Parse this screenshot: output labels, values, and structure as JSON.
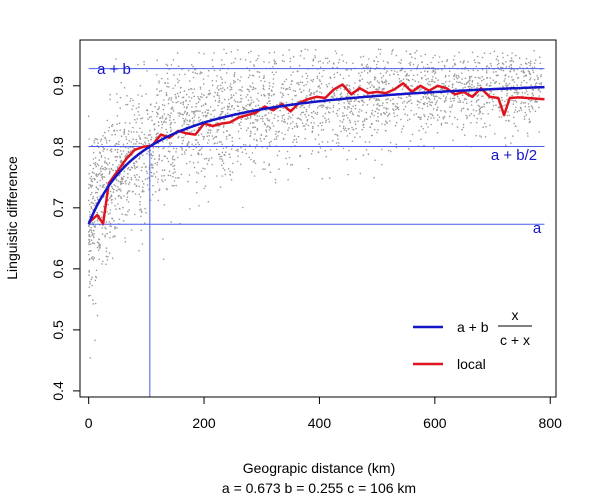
{
  "chart_data": {
    "type": "scatter",
    "xlabel": "Geograpic distance (km)",
    "ylabel": "Linguistic difference",
    "subtitle": "a = 0.673   b = 0.255   c = 106 km",
    "xlim": [
      -15,
      810
    ],
    "ylim": [
      0.39,
      0.975
    ],
    "x_ticks": [
      "0",
      "200",
      "400",
      "600",
      "800"
    ],
    "y_ticks": [
      "0.4",
      "0.5",
      "0.6",
      "0.7",
      "0.8",
      "0.9"
    ],
    "params": {
      "a": 0.673,
      "b": 0.255,
      "c": 106
    },
    "reference_lines": [
      {
        "label": "a",
        "y": 0.673
      },
      {
        "label": "a + b/2",
        "y": 0.8005
      },
      {
        "label": "a + b",
        "y": 0.928
      }
    ],
    "vertical_line_x": 106,
    "legend": {
      "position": "bottom-right",
      "fit_prefix": "a + b",
      "fit_numerator": "x",
      "fit_denominator": "c + x",
      "local_label": "local"
    },
    "series": [
      {
        "name": "local",
        "color": "#e0141e",
        "x": [
          0,
          15,
          25,
          35,
          50,
          65,
          80,
          95,
          110,
          125,
          140,
          155,
          170,
          185,
          200,
          215,
          230,
          245,
          260,
          275,
          290,
          305,
          320,
          335,
          350,
          365,
          380,
          395,
          410,
          425,
          440,
          455,
          470,
          485,
          500,
          515,
          530,
          545,
          560,
          575,
          590,
          605,
          620,
          635,
          650,
          665,
          680,
          695,
          710,
          720,
          730,
          745,
          760,
          775,
          790
        ],
        "y": [
          0.676,
          0.688,
          0.674,
          0.74,
          0.76,
          0.78,
          0.795,
          0.8,
          0.802,
          0.82,
          0.815,
          0.826,
          0.822,
          0.82,
          0.838,
          0.834,
          0.838,
          0.84,
          0.848,
          0.852,
          0.856,
          0.866,
          0.86,
          0.87,
          0.858,
          0.872,
          0.878,
          0.882,
          0.88,
          0.894,
          0.902,
          0.886,
          0.896,
          0.888,
          0.89,
          0.888,
          0.894,
          0.904,
          0.89,
          0.9,
          0.892,
          0.9,
          0.896,
          0.886,
          0.89,
          0.882,
          0.896,
          0.882,
          0.88,
          0.852,
          0.88,
          0.881,
          0.88,
          0.879,
          0.878
        ]
      }
    ],
    "colors": {
      "fit": "#1515c8",
      "local": "#e0141e",
      "reference": "#4a5cf0",
      "points": "#9a9a9a"
    }
  }
}
